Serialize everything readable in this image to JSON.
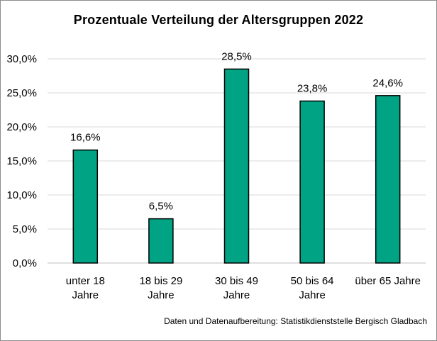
{
  "chart_data": {
    "type": "bar",
    "title": "Prozentuale Verteilung der Altersgruppen 2022",
    "categories": [
      [
        "unter 18",
        "Jahre"
      ],
      [
        "18 bis 29",
        "Jahre"
      ],
      [
        "30 bis 49",
        "Jahre"
      ],
      [
        "50 bis 64",
        "Jahre"
      ],
      [
        "über 65 Jahre"
      ]
    ],
    "values": [
      16.6,
      6.5,
      28.5,
      23.8,
      24.6
    ],
    "data_labels": [
      "16,6%",
      "6,5%",
      "28,5%",
      "23,8%",
      "24,6%"
    ],
    "y_ticks": [
      "0,0%",
      "5,0%",
      "10,0%",
      "15,0%",
      "20,0%",
      "25,0%",
      "30,0%"
    ],
    "ylim": [
      0,
      30
    ],
    "grid": true,
    "bar_color": "#00a383",
    "source": "Daten und Datenaufbereitung: Statistikdienststelle Bergisch Gladbach"
  }
}
